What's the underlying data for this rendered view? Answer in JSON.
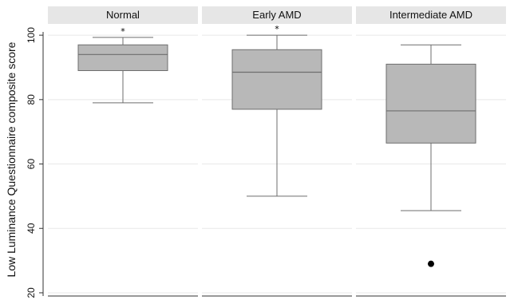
{
  "chart_data": {
    "type": "box",
    "ylabel": "Low Luminance Questionnaire composite score",
    "ylim": [
      19,
      103
    ],
    "yticks": [
      20,
      40,
      60,
      80,
      100
    ],
    "grid": true,
    "panels": [
      {
        "name": "Normal",
        "min": 79,
        "q1": 89,
        "median": 94,
        "q3": 97,
        "max": 99.3,
        "outliers": [],
        "annotation": "*"
      },
      {
        "name": "Early AMD",
        "min": 50,
        "q1": 77,
        "median": 88.5,
        "q3": 95.5,
        "max": 100,
        "outliers": [],
        "annotation": "*"
      },
      {
        "name": "Intermediate AMD",
        "min": 45.5,
        "q1": 66.5,
        "median": 76.5,
        "q3": 91,
        "max": 97,
        "outliers": [
          29
        ],
        "annotation": ""
      }
    ],
    "colors": {
      "box_fill": "#b8b8b8",
      "box_stroke": "#6e6e6e",
      "whisker": "#6e6e6e",
      "strip_fill": "#e6e6e6",
      "grid": "#e8e8e8",
      "outlier": "#000000"
    }
  }
}
